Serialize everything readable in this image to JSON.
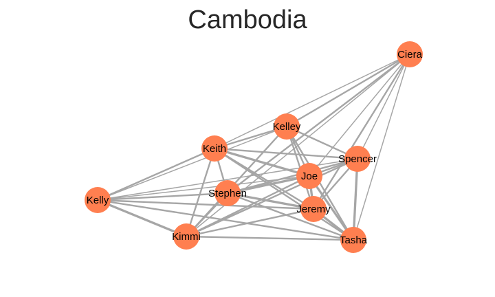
{
  "title": "Cambodia",
  "colors": {
    "node": "#ff7f50",
    "edge": "#a6a6a6",
    "text": "#000000"
  },
  "nodes": [
    {
      "id": "Ciera",
      "label": "Ciera"
    },
    {
      "id": "Kelley",
      "label": "Kelley"
    },
    {
      "id": "Keith",
      "label": "Keith"
    },
    {
      "id": "Spencer",
      "label": "Spencer"
    },
    {
      "id": "Joe",
      "label": "Joe"
    },
    {
      "id": "Stephen",
      "label": "Stephen"
    },
    {
      "id": "Kelly",
      "label": "Kelly"
    },
    {
      "id": "Jeremy",
      "label": "Jeremy"
    },
    {
      "id": "Kimmi",
      "label": "Kimmi"
    },
    {
      "id": "Tasha",
      "label": "Tasha"
    }
  ],
  "edges": [
    {
      "source": "Ciera",
      "target": "Keith",
      "weight": 1
    },
    {
      "source": "Ciera",
      "target": "Kelley",
      "weight": 2
    },
    {
      "source": "Ciera",
      "target": "Stephen",
      "weight": 2
    },
    {
      "source": "Ciera",
      "target": "Joe",
      "weight": 1
    },
    {
      "source": "Ciera",
      "target": "Spencer",
      "weight": 1
    },
    {
      "source": "Ciera",
      "target": "Jeremy",
      "weight": 2
    },
    {
      "source": "Ciera",
      "target": "Kimmi",
      "weight": 1
    },
    {
      "source": "Ciera",
      "target": "Tasha",
      "weight": 1
    },
    {
      "source": "Kelley",
      "target": "Keith",
      "weight": 2
    },
    {
      "source": "Kelley",
      "target": "Kelly",
      "weight": 1
    },
    {
      "source": "Kelley",
      "target": "Kimmi",
      "weight": 2
    },
    {
      "source": "Kelley",
      "target": "Joe",
      "weight": 2
    },
    {
      "source": "Kelley",
      "target": "Jeremy",
      "weight": 2
    },
    {
      "source": "Kelley",
      "target": "Tasha",
      "weight": 2
    },
    {
      "source": "Kelley",
      "target": "Spencer",
      "weight": 2
    },
    {
      "source": "Keith",
      "target": "Spencer",
      "weight": 2
    },
    {
      "source": "Keith",
      "target": "Joe",
      "weight": 3
    },
    {
      "source": "Keith",
      "target": "Stephen",
      "weight": 2
    },
    {
      "source": "Keith",
      "target": "Jeremy",
      "weight": 2
    },
    {
      "source": "Keith",
      "target": "Kimmi",
      "weight": 2
    },
    {
      "source": "Keith",
      "target": "Tasha",
      "weight": 2
    },
    {
      "source": "Keith",
      "target": "Kelly",
      "weight": 2
    },
    {
      "source": "Kelly",
      "target": "Joe",
      "weight": 1
    },
    {
      "source": "Kelly",
      "target": "Stephen",
      "weight": 2
    },
    {
      "source": "Kelly",
      "target": "Jeremy",
      "weight": 2
    },
    {
      "source": "Kelly",
      "target": "Kimmi",
      "weight": 3
    },
    {
      "source": "Kelly",
      "target": "Tasha",
      "weight": 2
    },
    {
      "source": "Kelly",
      "target": "Spencer",
      "weight": 1
    },
    {
      "source": "Spencer",
      "target": "Joe",
      "weight": 2
    },
    {
      "source": "Spencer",
      "target": "Stephen",
      "weight": 2
    },
    {
      "source": "Spencer",
      "target": "Jeremy",
      "weight": 2
    },
    {
      "source": "Spencer",
      "target": "Kimmi",
      "weight": 2
    },
    {
      "source": "Spencer",
      "target": "Tasha",
      "weight": 3
    },
    {
      "source": "Joe",
      "target": "Stephen",
      "weight": 3
    },
    {
      "source": "Joe",
      "target": "Jeremy",
      "weight": 3
    },
    {
      "source": "Joe",
      "target": "Kimmi",
      "weight": 2
    },
    {
      "source": "Joe",
      "target": "Tasha",
      "weight": 3
    },
    {
      "source": "Stephen",
      "target": "Jeremy",
      "weight": 3
    },
    {
      "source": "Stephen",
      "target": "Kimmi",
      "weight": 2
    },
    {
      "source": "Stephen",
      "target": "Tasha",
      "weight": 2
    },
    {
      "source": "Jeremy",
      "target": "Kimmi",
      "weight": 2
    },
    {
      "source": "Jeremy",
      "target": "Tasha",
      "weight": 3
    },
    {
      "source": "Kimmi",
      "target": "Tasha",
      "weight": 2
    }
  ]
}
